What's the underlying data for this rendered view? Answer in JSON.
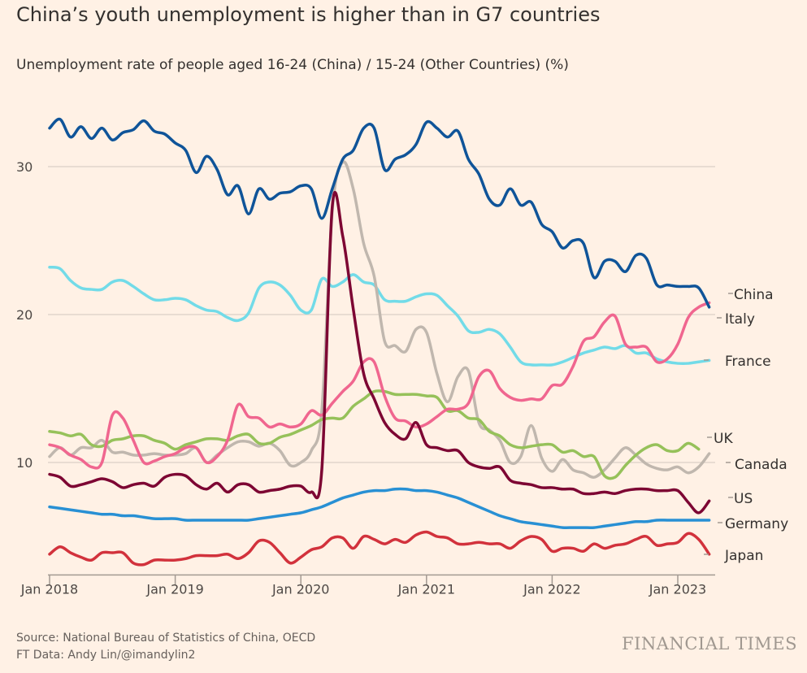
{
  "chart_data": {
    "type": "line",
    "title": "China’s youth unemployment is higher than in G7 countries",
    "subtitle": "Unemployment rate of people aged 16-24 (China) / 15-24 (Other Countries) (%)",
    "xlabel": "",
    "ylabel": "",
    "x_start": "2018-01",
    "x_frequency": "monthly",
    "x_tick_labels": [
      "Jan 2018",
      "Jan 2019",
      "Jan 2020",
      "Jan 2021",
      "Jan 2022",
      "Jan 2023"
    ],
    "y_ticks": [
      10,
      20,
      30
    ],
    "ylim": [
      2.4,
      35.8
    ],
    "grid": "horizontal",
    "legend": "direct labels at right end of lines",
    "series": [
      {
        "name": "China",
        "color": "#0f5499",
        "values": [
          32.6,
          33.2,
          32.0,
          32.7,
          31.9,
          32.6,
          31.8,
          32.3,
          32.5,
          33.1,
          32.4,
          32.2,
          31.6,
          31.1,
          29.6,
          30.7,
          29.8,
          28.1,
          28.7,
          26.8,
          28.5,
          27.8,
          28.2,
          28.3,
          28.7,
          28.5,
          26.5,
          28.5,
          30.5,
          31.1,
          32.6,
          32.6,
          29.8,
          30.5,
          30.8,
          31.5,
          33.0,
          32.6,
          32.0,
          32.4,
          30.5,
          29.5,
          27.8,
          27.4,
          28.5,
          27.4,
          27.6,
          26.1,
          25.6,
          24.5,
          25.0,
          24.8,
          22.5,
          23.6,
          23.6,
          22.9,
          24.0,
          23.8,
          22.0,
          22.0,
          21.9,
          21.9,
          21.8,
          20.5
        ]
      },
      {
        "name": "Italy",
        "color": "#f0668f",
        "values": [
          11.2,
          11.0,
          10.5,
          10.2,
          9.7,
          10.0,
          13.2,
          13.0,
          11.5,
          10.0,
          10.1,
          10.4,
          10.6,
          11.0,
          11.0,
          10.0,
          10.4,
          11.5,
          13.9,
          13.1,
          13.0,
          12.4,
          12.6,
          12.4,
          12.6,
          13.5,
          13.2,
          14.0,
          14.8,
          15.5,
          16.8,
          16.8,
          14.5,
          13.0,
          12.8,
          12.4,
          12.6,
          13.1,
          13.6,
          13.6,
          14.0,
          15.8,
          16.2,
          15.0,
          14.4,
          14.2,
          14.3,
          14.3,
          15.2,
          15.3,
          16.5,
          18.2,
          18.5,
          19.5,
          19.9,
          18.0,
          17.8,
          17.8,
          16.8,
          17.0,
          18.0,
          19.8,
          20.5,
          20.8
        ]
      },
      {
        "name": "France",
        "color": "#72dbe8",
        "values": [
          23.2,
          23.1,
          22.3,
          21.8,
          21.7,
          21.7,
          22.2,
          22.3,
          21.9,
          21.4,
          21.0,
          21.0,
          21.1,
          21.0,
          20.6,
          20.3,
          20.2,
          19.8,
          19.6,
          20.1,
          21.8,
          22.2,
          22.0,
          21.3,
          20.3,
          20.3,
          22.4,
          21.9,
          22.2,
          22.7,
          22.2,
          22.0,
          21.0,
          20.9,
          20.9,
          21.2,
          21.4,
          21.3,
          20.6,
          19.9,
          18.9,
          18.8,
          19.0,
          18.7,
          17.8,
          16.8,
          16.6,
          16.6,
          16.6,
          16.8,
          17.1,
          17.4,
          17.6,
          17.8,
          17.7,
          17.9,
          17.4,
          17.4,
          17.0,
          16.8,
          16.7,
          16.7,
          16.8,
          16.9
        ]
      },
      {
        "name": "UK",
        "color": "#96c15a",
        "values": [
          12.1,
          12.0,
          11.8,
          11.9,
          11.2,
          11.1,
          11.5,
          11.6,
          11.8,
          11.8,
          11.5,
          11.3,
          10.9,
          11.2,
          11.4,
          11.6,
          11.6,
          11.5,
          11.8,
          11.9,
          11.3,
          11.3,
          11.7,
          11.9,
          12.2,
          12.5,
          12.9,
          13.0,
          13.0,
          13.8,
          14.3,
          14.8,
          14.8,
          14.6,
          14.6,
          14.6,
          14.5,
          14.4,
          13.5,
          13.5,
          13.0,
          12.9,
          12.1,
          11.8,
          11.2,
          11.0,
          11.1,
          11.2,
          11.2,
          10.7,
          10.8,
          10.4,
          10.4,
          9.1,
          9.0,
          9.8,
          10.5,
          11.0,
          11.2,
          10.8,
          10.8,
          11.3,
          10.9,
          null
        ]
      },
      {
        "name": "Canada",
        "color": "#c0b7ae",
        "values": [
          10.4,
          11.0,
          10.5,
          11.0,
          11.0,
          11.5,
          10.7,
          10.7,
          10.5,
          10.5,
          10.6,
          10.5,
          10.5,
          10.6,
          11.0,
          10.0,
          10.5,
          11.0,
          11.4,
          11.4,
          11.1,
          11.3,
          10.8,
          9.8,
          10.0,
          10.8,
          13.5,
          27.0,
          30.3,
          28.5,
          24.8,
          22.6,
          18.2,
          17.9,
          17.5,
          19.0,
          18.8,
          16.0,
          14.1,
          15.8,
          16.2,
          12.7,
          12.2,
          11.5,
          10.0,
          10.4,
          12.5,
          10.3,
          9.4,
          10.2,
          9.5,
          9.3,
          9.0,
          9.5,
          10.3,
          11.0,
          10.5,
          9.9,
          9.6,
          9.5,
          9.7,
          9.3,
          9.7,
          10.6
        ]
      },
      {
        "name": "US",
        "color": "#7d0633",
        "values": [
          9.2,
          9.0,
          8.4,
          8.5,
          8.7,
          8.9,
          8.7,
          8.3,
          8.5,
          8.6,
          8.4,
          9.0,
          9.2,
          9.1,
          8.5,
          8.2,
          8.6,
          8.0,
          8.5,
          8.5,
          8.0,
          8.1,
          8.2,
          8.4,
          8.4,
          8.0,
          9.5,
          27.3,
          25.3,
          20.4,
          16.0,
          14.3,
          12.7,
          11.9,
          11.6,
          12.7,
          11.2,
          11.0,
          10.8,
          10.8,
          10.0,
          9.7,
          9.6,
          9.7,
          8.8,
          8.6,
          8.5,
          8.3,
          8.3,
          8.2,
          8.2,
          7.9,
          7.9,
          8.0,
          7.9,
          8.1,
          8.2,
          8.2,
          8.1,
          8.1,
          8.1,
          7.3,
          6.6,
          7.4
        ]
      },
      {
        "name": "Germany",
        "color": "#2890d4",
        "values": [
          7.0,
          6.9,
          6.8,
          6.7,
          6.6,
          6.5,
          6.5,
          6.4,
          6.4,
          6.3,
          6.2,
          6.2,
          6.2,
          6.1,
          6.1,
          6.1,
          6.1,
          6.1,
          6.1,
          6.1,
          6.2,
          6.3,
          6.4,
          6.5,
          6.6,
          6.8,
          7.0,
          7.3,
          7.6,
          7.8,
          8.0,
          8.1,
          8.1,
          8.2,
          8.2,
          8.1,
          8.1,
          8.0,
          7.8,
          7.6,
          7.3,
          7.0,
          6.7,
          6.4,
          6.2,
          6.0,
          5.9,
          5.8,
          5.7,
          5.6,
          5.6,
          5.6,
          5.6,
          5.7,
          5.8,
          5.9,
          6.0,
          6.0,
          6.1,
          6.1,
          6.1,
          6.1,
          6.1,
          6.1
        ]
      },
      {
        "name": "Japan",
        "color": "#d2323c",
        "values": [
          3.8,
          4.3,
          3.9,
          3.6,
          3.4,
          3.9,
          3.9,
          3.9,
          3.2,
          3.1,
          3.4,
          3.4,
          3.4,
          3.5,
          3.7,
          3.7,
          3.7,
          3.8,
          3.5,
          3.9,
          4.7,
          4.6,
          3.9,
          3.2,
          3.6,
          4.1,
          4.3,
          4.9,
          4.9,
          4.2,
          5.0,
          4.8,
          4.5,
          4.8,
          4.6,
          5.1,
          5.3,
          5.0,
          4.9,
          4.5,
          4.5,
          4.6,
          4.5,
          4.5,
          4.2,
          4.7,
          5.0,
          4.8,
          4.0,
          4.2,
          4.2,
          4.0,
          4.5,
          4.2,
          4.4,
          4.5,
          4.8,
          5.0,
          4.4,
          4.5,
          4.6,
          5.2,
          4.8,
          3.8
        ]
      }
    ]
  },
  "footer": {
    "source": "Source: National Bureau of Statistics of China, OECD",
    "credit": "FT Data: Andy Lin/@imandylin2",
    "logo": "FINANCIAL TIMES"
  },
  "style": {
    "background": "#fff1e5",
    "grid": "#e0d6cc",
    "axis": "#a39a92"
  }
}
